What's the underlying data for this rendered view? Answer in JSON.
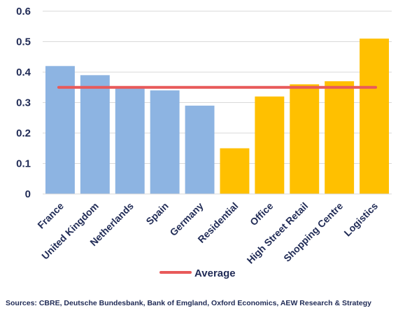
{
  "chart_data": {
    "type": "bar",
    "categories": [
      "France",
      "United Kingdom",
      "Netherlands",
      "Spain",
      "Germany",
      "Residential",
      "Office",
      "High Street Retail",
      "Shopping Centre",
      "Logistics"
    ],
    "values": [
      0.42,
      0.39,
      0.35,
      0.34,
      0.29,
      0.15,
      0.32,
      0.36,
      0.37,
      0.51
    ],
    "bar_colors": [
      "#8db4e2",
      "#8db4e2",
      "#8db4e2",
      "#8db4e2",
      "#8db4e2",
      "#ffc000",
      "#ffc000",
      "#ffc000",
      "#ffc000",
      "#ffc000"
    ],
    "average": {
      "name": "Average",
      "value": 0.35,
      "color": "#e85a5a"
    },
    "ylim": [
      0,
      0.6
    ],
    "yticks": [
      "0",
      "0.1",
      "0.2",
      "0.3",
      "0.4",
      "0.5",
      "0.6"
    ],
    "grid": true,
    "legend": "bottom",
    "title": "",
    "xlabel": "",
    "ylabel": ""
  },
  "source_note": "Sources: CBRE, Deutsche Bundesbank, Bank of Emgland, Oxford Economics, AEW Research & Strategy"
}
